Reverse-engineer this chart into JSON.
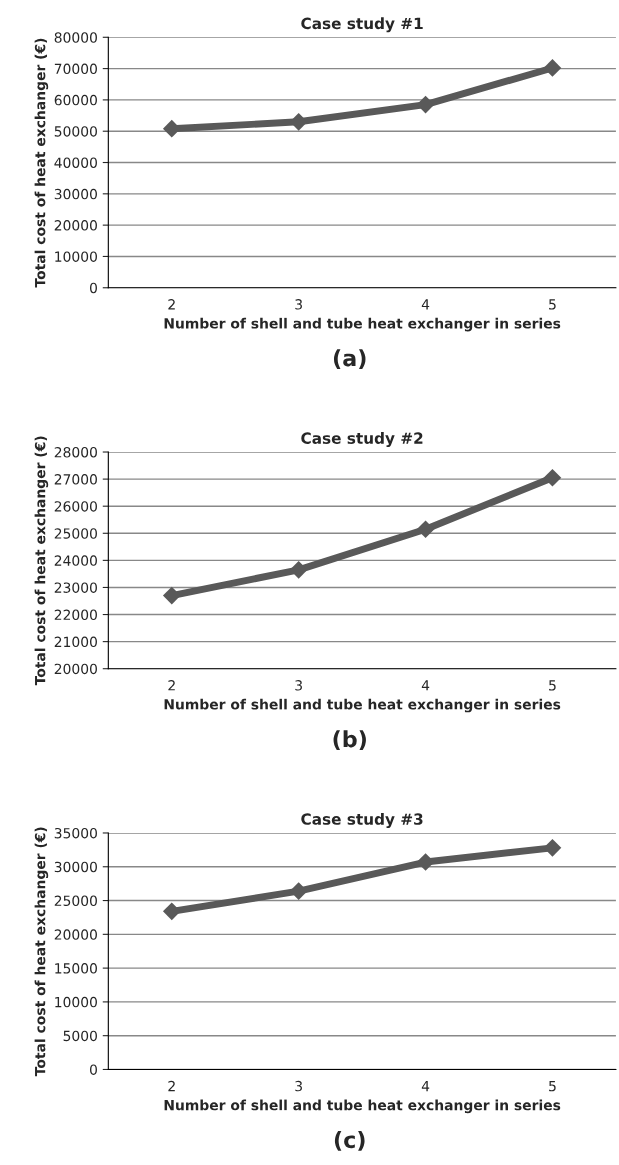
{
  "chart_data": [
    {
      "type": "line",
      "title": "Case study #1",
      "xlabel": "Number of shell and tube heat exchanger in series",
      "ylabel": "Total cost of heat exchanger (€)",
      "categories": [
        "2",
        "3",
        "4",
        "5"
      ],
      "series": [
        {
          "color": "#595959",
          "values": [
            50800,
            53000,
            58500,
            70200
          ]
        }
      ],
      "ylim": [
        0,
        80000
      ],
      "yticks": [
        0,
        10000,
        20000,
        30000,
        40000,
        50000,
        60000,
        70000,
        80000
      ],
      "grid": "y",
      "marker": "diamond",
      "line_style": "solid",
      "legend": false,
      "annotations": [
        "(a)"
      ]
    },
    {
      "type": "line",
      "title": "Case study #2",
      "xlabel": "Number of shell and tube heat exchanger in series",
      "ylabel": "Total cost of heat exchanger (€)",
      "categories": [
        "2",
        "3",
        "4",
        "5"
      ],
      "series": [
        {
          "color": "#595959",
          "values": [
            22700,
            23650,
            25150,
            27050
          ]
        }
      ],
      "ylim": [
        20000,
        28000
      ],
      "yticks": [
        20000,
        21000,
        22000,
        23000,
        24000,
        25000,
        26000,
        27000,
        28000
      ],
      "grid": "y",
      "marker": "diamond",
      "line_style": "solid",
      "legend": false,
      "annotations": [
        "(b)"
      ]
    },
    {
      "type": "line",
      "title": "Case study #3",
      "xlabel": "Number of shell and tube heat exchanger in series",
      "ylabel": "Total cost of heat exchanger (€)",
      "categories": [
        "2",
        "3",
        "4",
        "5"
      ],
      "series": [
        {
          "color": "#595959",
          "values": [
            23400,
            26400,
            30700,
            32800
          ]
        }
      ],
      "ylim": [
        0,
        35000
      ],
      "yticks": [
        0,
        5000,
        10000,
        15000,
        20000,
        25000,
        30000,
        35000
      ],
      "grid": "y",
      "marker": "diamond",
      "line_style": "solid",
      "legend": false,
      "annotations": [
        "(c)"
      ]
    }
  ]
}
